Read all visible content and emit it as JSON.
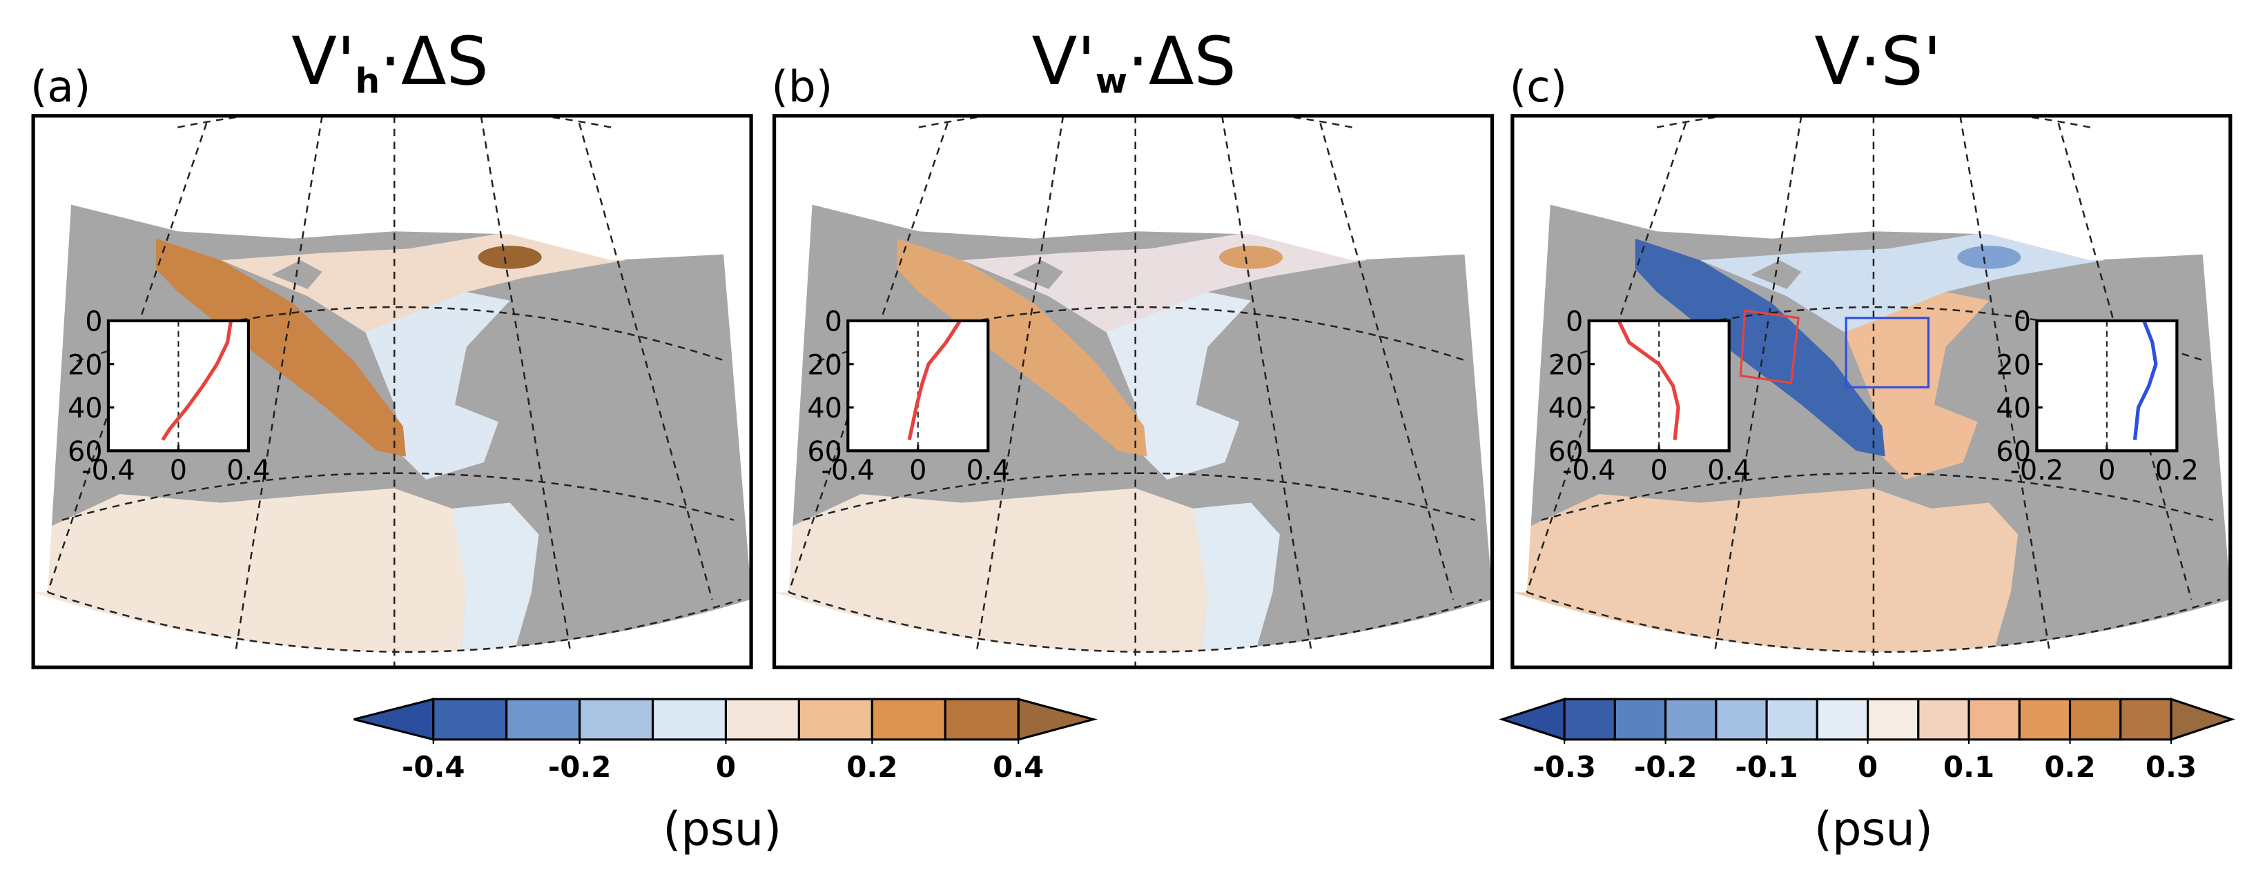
{
  "panels": [
    {
      "label": "(a)",
      "title": [
        {
          "text": "V'"
        },
        {
          "text": "h",
          "sub": true
        },
        {
          "text": "·ΔS"
        }
      ],
      "insets": [
        {
          "xlim": [
            -0.4,
            0.4
          ],
          "xticks": [
            -0.4,
            0,
            0.4
          ],
          "ylim": [
            0,
            60
          ],
          "yticks": [
            0,
            20,
            40,
            60
          ],
          "series": [
            {
              "color": "#e8423f",
              "values": [
                0.3,
                0.28,
                0.22,
                0.14,
                0.05,
                -0.05,
                -0.09
              ],
              "depths": [
                0,
                10,
                20,
                30,
                40,
                50,
                55
              ]
            }
          ]
        }
      ]
    },
    {
      "label": "(b)",
      "title": [
        {
          "text": "V'"
        },
        {
          "text": "w",
          "sub": true
        },
        {
          "text": "·ΔS"
        }
      ],
      "insets": [
        {
          "xlim": [
            -0.4,
            0.4
          ],
          "xticks": [
            -0.4,
            0,
            0.4
          ],
          "ylim": [
            0,
            60
          ],
          "yticks": [
            0,
            20,
            40,
            60
          ],
          "series": [
            {
              "color": "#e8423f",
              "values": [
                0.24,
                0.16,
                0.06,
                0.02,
                -0.01,
                -0.05
              ],
              "depths": [
                0,
                10,
                20,
                30,
                40,
                55
              ]
            }
          ]
        }
      ]
    },
    {
      "label": "(c)",
      "title": [
        {
          "text": "V·S'"
        }
      ],
      "insets": [
        {
          "xlim": [
            -0.4,
            0.4
          ],
          "xticks": [
            -0.4,
            0,
            0.4
          ],
          "ylim": [
            0,
            60
          ],
          "yticks": [
            0,
            20,
            40,
            60
          ],
          "series": [
            {
              "color": "#e8423f",
              "values": [
                -0.23,
                -0.17,
                0,
                0.08,
                0.11,
                0.09
              ],
              "depths": [
                0,
                10,
                20,
                30,
                40,
                55
              ]
            }
          ]
        },
        {
          "xlim": [
            -0.2,
            0.2
          ],
          "xticks": [
            -0.2,
            0,
            0.2
          ],
          "ylim": [
            0,
            60
          ],
          "yticks": [
            0,
            20,
            40,
            60
          ],
          "series": [
            {
              "color": "#2f4fe0",
              "values": [
                0.106,
                0.13,
                0.14,
                0.12,
                0.09,
                0.08
              ],
              "depths": [
                0,
                10,
                20,
                30,
                40,
                55
              ]
            }
          ]
        }
      ]
    }
  ],
  "colorbars": [
    {
      "lim": [
        -0.4,
        0.4
      ],
      "ticks": [
        -0.4,
        -0.2,
        0,
        0.2,
        0.4
      ],
      "under": "#2b4f9e",
      "over": "#9c6a3a",
      "colors": [
        "#3c63ad",
        "#6f97cc",
        "#a9c3e3",
        "#dce8f3",
        "#f4e6da",
        "#efbf95",
        "#dc9450",
        "#b8763f"
      ],
      "unit": "(psu)"
    },
    {
      "lim": [
        -0.3,
        0.3
      ],
      "ticks": [
        -0.3,
        -0.2,
        -0.1,
        0,
        0.1,
        0.2,
        0.3
      ],
      "under": "#2b4f9e",
      "over": "#9a6b3e",
      "colors": [
        "#3a5da8",
        "#5a82c0",
        "#7fa2d2",
        "#a4c0e2",
        "#c7d9ee",
        "#e4edf6",
        "#f6ece3",
        "#f3d3bd",
        "#eeb78f",
        "#e19a5a",
        "#c98446",
        "#b07643"
      ],
      "unit": "(psu)"
    }
  ]
}
